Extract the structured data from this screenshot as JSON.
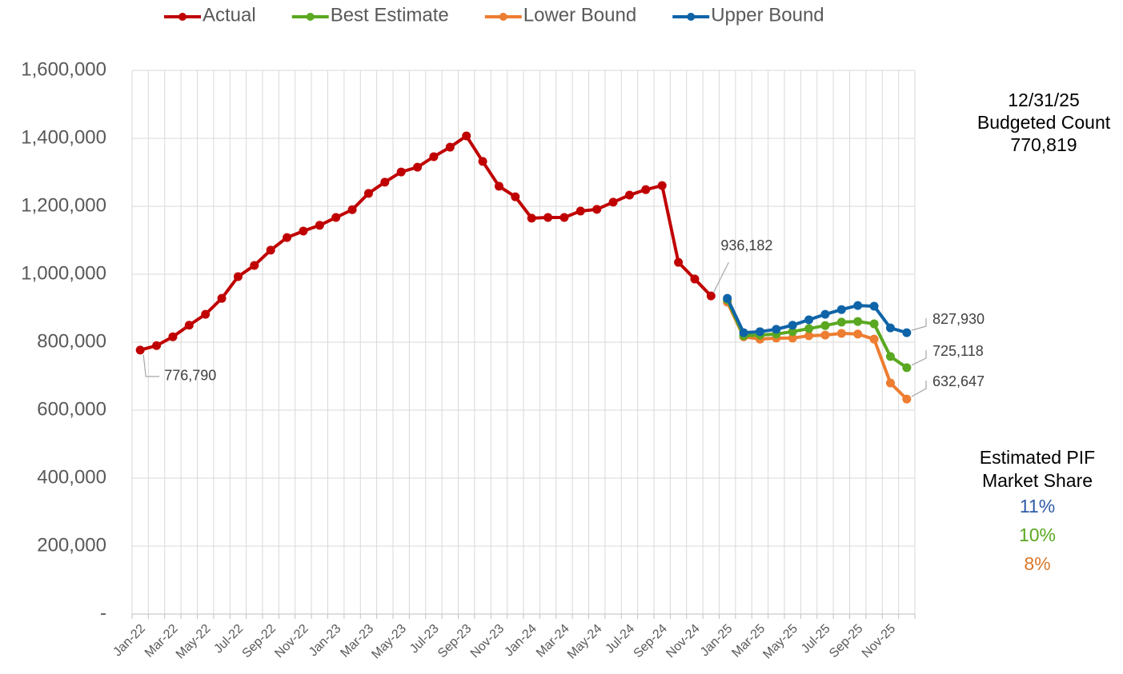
{
  "chart_data": {
    "type": "line",
    "categories": [
      "Jan-22",
      null,
      "Mar-22",
      null,
      "May-22",
      null,
      "Jul-22",
      null,
      "Sep-22",
      null,
      "Nov-22",
      null,
      "Jan-23",
      null,
      "Mar-23",
      null,
      "May-23",
      null,
      "Jul-23",
      null,
      "Sep-23",
      null,
      "Nov-23",
      null,
      "Jan-24",
      null,
      "Mar-24",
      null,
      "May-24",
      null,
      "Jul-24",
      null,
      "Sep-24",
      null,
      "Nov-24",
      null,
      "Jan-25",
      null,
      "Mar-25",
      null,
      "May-25",
      null,
      "Jul-25",
      null,
      "Sep-25",
      null,
      "Nov-25",
      null
    ],
    "series": [
      {
        "name": "Actual",
        "color": "#c00000",
        "values": [
          776790,
          790000,
          816000,
          850000,
          882000,
          929000,
          993000,
          1026000,
          1071000,
          1108000,
          1127000,
          1144000,
          1167000,
          1190000,
          1238000,
          1271000,
          1301000,
          1315000,
          1346000,
          1374000,
          1407000,
          1332000,
          1259000,
          1228000,
          1165000,
          1167000,
          1167000,
          1186000,
          1191000,
          1212000,
          1233000,
          1249000,
          1261000,
          1035000,
          986000,
          936182,
          null,
          null,
          null,
          null,
          null,
          null,
          null,
          null,
          null,
          null,
          null,
          null
        ],
        "value_labels": [
          "776,790",
          null,
          null,
          null,
          null,
          null,
          null,
          null,
          null,
          null,
          null,
          null,
          null,
          null,
          null,
          null,
          null,
          null,
          null,
          null,
          null,
          null,
          null,
          null,
          null,
          null,
          null,
          null,
          null,
          null,
          null,
          null,
          null,
          null,
          null,
          "936,182",
          null,
          null,
          null,
          null,
          null,
          null,
          null,
          null,
          null,
          null,
          null,
          null
        ]
      },
      {
        "name": "Best Estimate",
        "color": "#5aa821",
        "values": [
          null,
          null,
          null,
          null,
          null,
          null,
          null,
          null,
          null,
          null,
          null,
          null,
          null,
          null,
          null,
          null,
          null,
          null,
          null,
          null,
          null,
          null,
          null,
          null,
          null,
          null,
          null,
          null,
          null,
          null,
          null,
          null,
          null,
          null,
          null,
          null,
          925000,
          819000,
          821000,
          824000,
          831000,
          840000,
          849000,
          859000,
          861000,
          854000,
          758000,
          725118
        ],
        "value_labels": [
          null,
          null,
          null,
          null,
          null,
          null,
          null,
          null,
          null,
          null,
          null,
          null,
          null,
          null,
          null,
          null,
          null,
          null,
          null,
          null,
          null,
          null,
          null,
          null,
          null,
          null,
          null,
          null,
          null,
          null,
          null,
          null,
          null,
          null,
          null,
          null,
          null,
          null,
          null,
          null,
          null,
          null,
          null,
          null,
          null,
          null,
          null,
          "725,118"
        ]
      },
      {
        "name": "Lower Bound",
        "color": "#ed7d31",
        "values": [
          null,
          null,
          null,
          null,
          null,
          null,
          null,
          null,
          null,
          null,
          null,
          null,
          null,
          null,
          null,
          null,
          null,
          null,
          null,
          null,
          null,
          null,
          null,
          null,
          null,
          null,
          null,
          null,
          null,
          null,
          null,
          null,
          null,
          null,
          null,
          null,
          918000,
          816000,
          809000,
          812000,
          812000,
          819000,
          821000,
          826000,
          824000,
          809000,
          680000,
          632647
        ],
        "value_labels": [
          null,
          null,
          null,
          null,
          null,
          null,
          null,
          null,
          null,
          null,
          null,
          null,
          null,
          null,
          null,
          null,
          null,
          null,
          null,
          null,
          null,
          null,
          null,
          null,
          null,
          null,
          null,
          null,
          null,
          null,
          null,
          null,
          null,
          null,
          null,
          null,
          null,
          null,
          null,
          null,
          null,
          null,
          null,
          null,
          null,
          null,
          null,
          "632,647"
        ]
      },
      {
        "name": "Upper Bound",
        "color": "#0f64a8",
        "values": [
          null,
          null,
          null,
          null,
          null,
          null,
          null,
          null,
          null,
          null,
          null,
          null,
          null,
          null,
          null,
          null,
          null,
          null,
          null,
          null,
          null,
          null,
          null,
          null,
          null,
          null,
          null,
          null,
          null,
          null,
          null,
          null,
          null,
          null,
          null,
          null,
          929000,
          828000,
          831000,
          838000,
          850000,
          866000,
          882000,
          896000,
          908000,
          906000,
          842000,
          827930
        ],
        "value_labels": [
          null,
          null,
          null,
          null,
          null,
          null,
          null,
          null,
          null,
          null,
          null,
          null,
          null,
          null,
          null,
          null,
          null,
          null,
          null,
          null,
          null,
          null,
          null,
          null,
          null,
          null,
          null,
          null,
          null,
          null,
          null,
          null,
          null,
          null,
          null,
          null,
          null,
          null,
          null,
          null,
          null,
          null,
          null,
          null,
          null,
          null,
          null,
          "827,930"
        ]
      }
    ],
    "ylim": [
      0,
      1600000
    ],
    "yticks": [
      {
        "value": 0,
        "label": "-"
      },
      {
        "value": 200000,
        "label": "200,000"
      },
      {
        "value": 400000,
        "label": "400,000"
      },
      {
        "value": 600000,
        "label": "600,000"
      },
      {
        "value": 800000,
        "label": "800,000"
      },
      {
        "value": 1000000,
        "label": "1,000,000"
      },
      {
        "value": 1200000,
        "label": "1,200,000"
      },
      {
        "value": 1400000,
        "label": "1,400,000"
      },
      {
        "value": 1600000,
        "label": "1,600,000"
      }
    ],
    "grid": true,
    "legend": "top",
    "budget_note": [
      "12/31/25",
      "Budgeted Count",
      "770,819"
    ],
    "share_note": {
      "title": [
        "Estimated PIF",
        "Market Share"
      ],
      "items": [
        {
          "text": "11%",
          "color": "#2e5ca8"
        },
        {
          "text": "10%",
          "color": "#5aa821"
        },
        {
          "text": "8%",
          "color": "#d9772b"
        }
      ]
    }
  }
}
